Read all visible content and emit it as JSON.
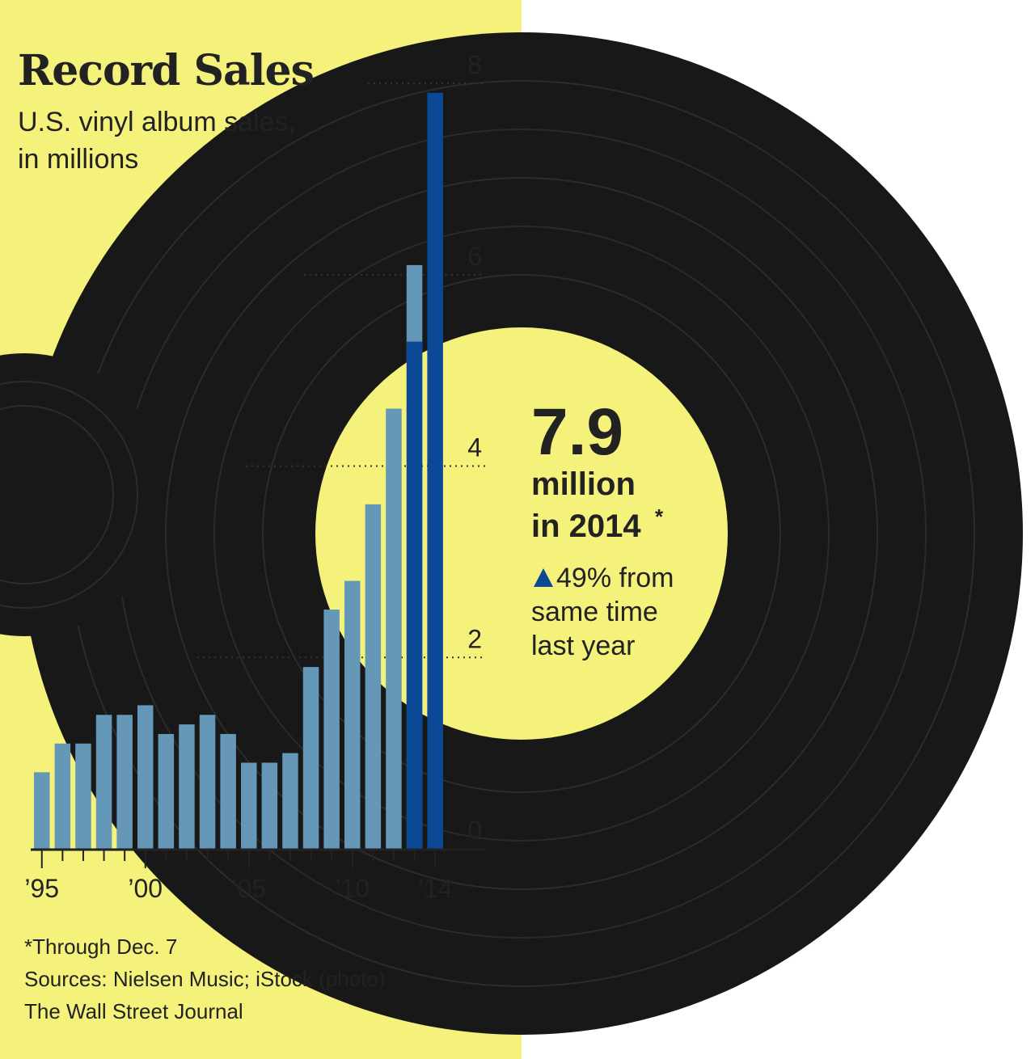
{
  "colors": {
    "background": "#f4f27a",
    "bar": "#6597b6",
    "bar_highlight": "#0b4996",
    "record": "#181818",
    "arrow": "#0b4996",
    "text": "#222222"
  },
  "callout": {
    "value": "7.9",
    "line1": "million",
    "line2": "in 2014",
    "asterisk": "*",
    "arrow_icon": "up-triangle-icon",
    "change": "49% from",
    "change_line2": "same time",
    "change_line3": "last year"
  },
  "footnotes": {
    "through": "*Through Dec. 7",
    "sources": "Sources: Nielsen Music; iStock (photo)",
    "publisher": "The Wall Street Journal"
  },
  "chart_data": {
    "type": "bar",
    "title": "Record Sales",
    "subtitle_line1": "U.S. vinyl album sales,",
    "subtitle_line2": "in millions",
    "x": [
      1995,
      1996,
      1997,
      1998,
      1999,
      2000,
      2001,
      2002,
      2003,
      2004,
      2005,
      2006,
      2007,
      2008,
      2009,
      2010,
      2011,
      2012,
      2013,
      2014
    ],
    "values": [
      0.8,
      1.1,
      1.1,
      1.4,
      1.4,
      1.5,
      1.2,
      1.3,
      1.4,
      1.2,
      0.9,
      0.9,
      1.0,
      1.9,
      2.5,
      2.8,
      3.6,
      4.6,
      6.1,
      7.9
    ],
    "overlay": {
      "x": 2013,
      "value": 5.3,
      "note": "same time comparison"
    },
    "highlight": [
      2014
    ],
    "ylim": [
      0,
      8
    ],
    "yticks": [
      0,
      2,
      4,
      6,
      8
    ],
    "ytick_labels": [
      "0",
      "2",
      "4",
      "6",
      "8"
    ],
    "xtick_labels": [
      {
        "year": 1995,
        "label": "’95"
      },
      {
        "year": 2000,
        "label": "’00"
      },
      {
        "year": 2005,
        "label": "’05"
      },
      {
        "year": 2010,
        "label": "’10"
      },
      {
        "year": 2014,
        "label": "’14"
      }
    ],
    "grid": "dotted",
    "legend": "none"
  }
}
